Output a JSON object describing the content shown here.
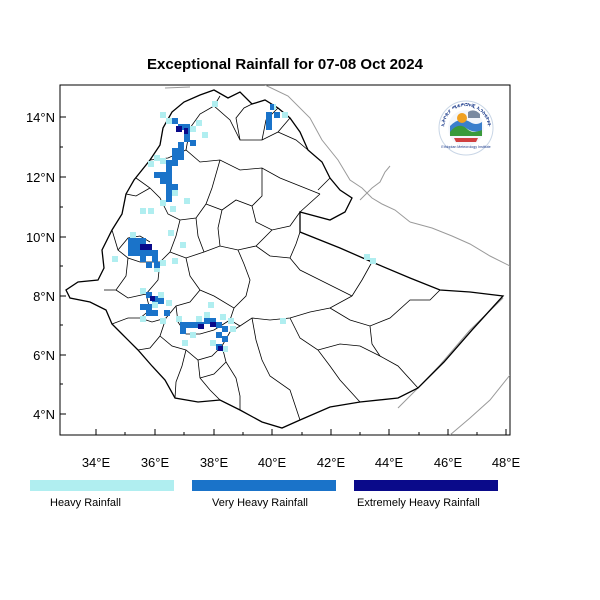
{
  "title": "Exceptional Rainfall for 07-08 Oct 2024",
  "axes": {
    "lat_ticks": [
      "14°N",
      "12°N",
      "10°N",
      "8°N",
      "6°N",
      "4°N"
    ],
    "lon_ticks": [
      "34°E",
      "36°E",
      "38°E",
      "40°E",
      "42°E",
      "44°E",
      "46°E",
      "48°E"
    ]
  },
  "legend": [
    {
      "label": "Heavy Rainfall",
      "color": "#b0eef0"
    },
    {
      "label": "Very Heavy Rainfall",
      "color": "#1a73c9"
    },
    {
      "label": "Extremely Heavy Rainfall",
      "color": "#0a0a8a"
    }
  ],
  "logo": {
    "top_text": "ኢትዮጵያ ሜቲዎሮሎጂ ኢንስቲትዩት",
    "bottom_text": "Ethiopian Meteorology Institute"
  }
}
